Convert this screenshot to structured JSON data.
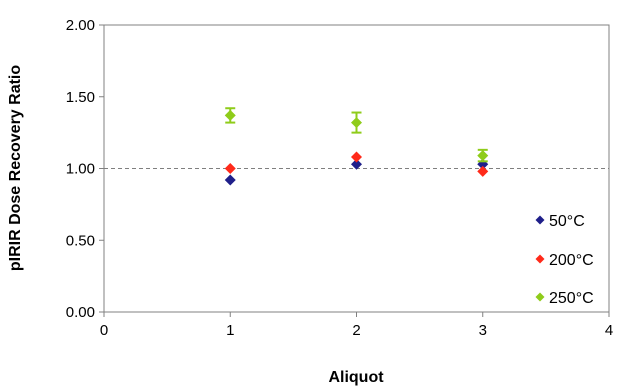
{
  "chart_data": {
    "type": "scatter",
    "title": "",
    "xlabel": "Aliquot",
    "ylabel": "pIRIR Dose Recovery Ratio",
    "xlim": [
      0,
      4
    ],
    "ylim": [
      0,
      2
    ],
    "x_ticks": [
      "0",
      "1",
      "2",
      "3",
      "4"
    ],
    "y_ticks": [
      "0.00",
      "0.50",
      "1.00",
      "1.50",
      "2.00"
    ],
    "reference_line": 1.0,
    "grid": false,
    "legend_position": "bottom-right",
    "series": [
      {
        "name": "50°C",
        "color": "#1f1f8a",
        "x": [
          1,
          2,
          3
        ],
        "y": [
          0.92,
          1.03,
          1.03
        ],
        "error": [
          0,
          0,
          0
        ]
      },
      {
        "name": "200°C",
        "color": "#ff2a1a",
        "x": [
          1,
          2,
          3
        ],
        "y": [
          1.0,
          1.08,
          0.98
        ],
        "error": [
          0,
          0,
          0
        ]
      },
      {
        "name": "250°C",
        "color": "#8fcc1a",
        "x": [
          1,
          2,
          3
        ],
        "y": [
          1.37,
          1.32,
          1.09
        ],
        "error": [
          0.05,
          0.07,
          0.04
        ]
      }
    ]
  }
}
